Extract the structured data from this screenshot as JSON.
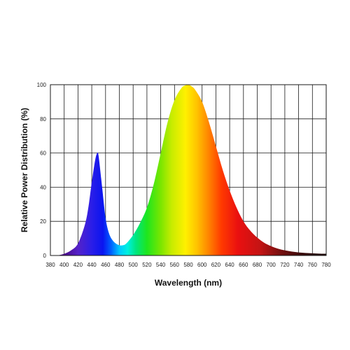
{
  "chart_data": {
    "type": "area",
    "title": "",
    "xlabel": "Wavelength (nm)",
    "ylabel": "Relative Power Distribution (%)",
    "xlim": [
      380,
      780
    ],
    "ylim": [
      0,
      100
    ],
    "x_ticks": [
      380,
      400,
      420,
      440,
      460,
      480,
      500,
      520,
      540,
      560,
      580,
      600,
      620,
      640,
      660,
      680,
      700,
      720,
      740,
      760,
      780
    ],
    "y_ticks": [
      0,
      20,
      40,
      60,
      80,
      100
    ],
    "grid": true,
    "legend": "none",
    "fill": "visible-spectrum-gradient",
    "series": [
      {
        "x": [
          380,
          390,
          400,
          410,
          420,
          430,
          435,
          440,
          445,
          448,
          450,
          455,
          460,
          465,
          470,
          475,
          480,
          485,
          490,
          500,
          510,
          520,
          530,
          540,
          550,
          560,
          570,
          575,
          580,
          585,
          590,
          600,
          610,
          620,
          630,
          640,
          650,
          660,
          670,
          680,
          690,
          700,
          710,
          720,
          730,
          740,
          750,
          760,
          770,
          780
        ],
        "values": [
          0,
          0,
          1,
          3,
          7,
          18,
          28,
          43,
          56,
          60,
          58,
          40,
          22,
          13,
          9,
          7,
          6,
          6,
          7,
          12,
          19,
          28,
          42,
          60,
          78,
          91,
          98,
          99.5,
          100,
          99,
          97,
          90,
          78,
          64,
          50,
          38,
          28,
          20,
          14.5,
          10.5,
          7.5,
          5.5,
          4,
          3,
          2.3,
          1.8,
          1.5,
          1.3,
          1.1,
          1
        ]
      }
    ]
  }
}
